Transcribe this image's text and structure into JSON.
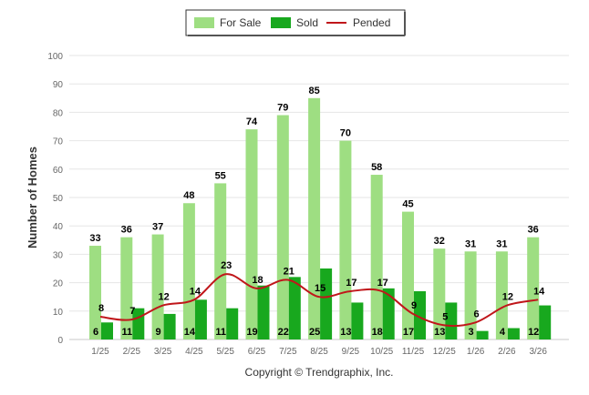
{
  "chart_data": {
    "type": "bar",
    "title": "",
    "xlabel": "",
    "ylabel": "Number of Homes",
    "ylim": [
      0,
      100
    ],
    "yticks": [
      0,
      10,
      20,
      30,
      40,
      50,
      60,
      70,
      80,
      90,
      100
    ],
    "grid": true,
    "legend_position": "top-center",
    "categories": [
      "1/25",
      "2/25",
      "3/25",
      "4/25",
      "5/25",
      "6/25",
      "7/25",
      "8/25",
      "9/25",
      "10/25",
      "11/25",
      "12/25",
      "1/26",
      "2/26",
      "3/26"
    ],
    "series": [
      {
        "name": "For Sale",
        "kind": "bar",
        "color": "#9ede82",
        "values": [
          33,
          36,
          37,
          48,
          55,
          74,
          79,
          85,
          70,
          58,
          45,
          32,
          31,
          31,
          36
        ]
      },
      {
        "name": "Sold",
        "kind": "bar",
        "color": "#18a81e",
        "values": [
          6,
          11,
          9,
          14,
          11,
          19,
          22,
          25,
          13,
          18,
          17,
          13,
          3,
          4,
          12
        ]
      },
      {
        "name": "Pended",
        "kind": "line",
        "color": "#c0161a",
        "values": [
          8,
          7,
          12,
          14,
          23,
          18,
          21,
          15,
          17,
          17,
          9,
          5,
          6,
          12,
          14
        ]
      }
    ],
    "footer": "Copyright © Trendgraphix, Inc."
  }
}
